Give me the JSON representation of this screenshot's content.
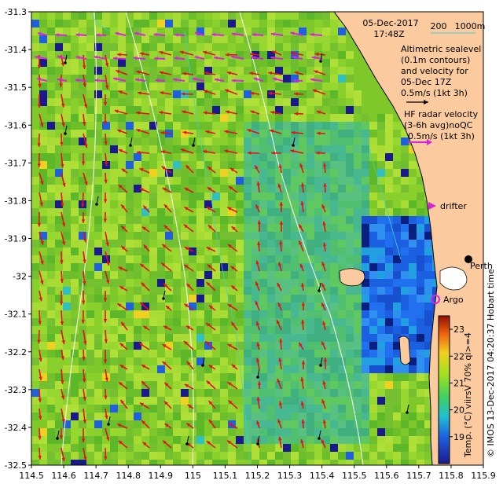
{
  "header": {
    "date": "05-Dec-2017",
    "time": "17:48Z"
  },
  "scale": {
    "label_a": "200",
    "label_b": "1000m"
  },
  "legend_text": {
    "altimetry": [
      "Altimetric sealevel",
      "(0.1m contours)",
      "and velocity for",
      "05-Dec 17Z",
      "0.5m/s (1kt 3h)"
    ],
    "hf_radar": [
      "HF radar velocity",
      "(3-6h avg)noQC",
      "0.5m/s (1kt 3h)"
    ],
    "drifter": "drifter",
    "argo": "Argo",
    "city": "Perth",
    "side_text": "Hobart time",
    "credit": "© IMOS 13-Dec-2017 04:20:37 Hobart time"
  },
  "colorbar": {
    "label": "Temp. (°C) viirsV 70% ql>=4",
    "ticks": [
      "23",
      "22",
      "21",
      "20",
      "19"
    ],
    "range": [
      18,
      23.5
    ]
  },
  "axes": {
    "x_ticks": [
      "114.5",
      "114.6",
      "114.7",
      "114.8",
      "114.9",
      "115",
      "115.1",
      "115.2",
      "115.3",
      "115.4",
      "115.5",
      "115.6",
      "115.7",
      "115.8",
      "115.9"
    ],
    "y_ticks": [
      "-31.3",
      "-31.4",
      "-31.5",
      "-31.6",
      "-31.7",
      "-31.8",
      "-31.9",
      "-32",
      "-32.1",
      "-32.2",
      "-32.3",
      "-32.4",
      "-32.5"
    ],
    "lon_range": [
      114.5,
      115.9
    ],
    "lat_range": [
      -32.5,
      -31.3
    ]
  },
  "colors": {
    "land": "#fbcb9f",
    "cold_water": "#1a60e0",
    "warm_water": "#7ec82a",
    "altimetry_arrow": "#e81010",
    "hf_radar_arrow": "#e020e0",
    "drifter_track": "#000000",
    "argo_marker": "#e020e0",
    "contour": "#ffffff",
    "isobath": "#40d0d0"
  }
}
